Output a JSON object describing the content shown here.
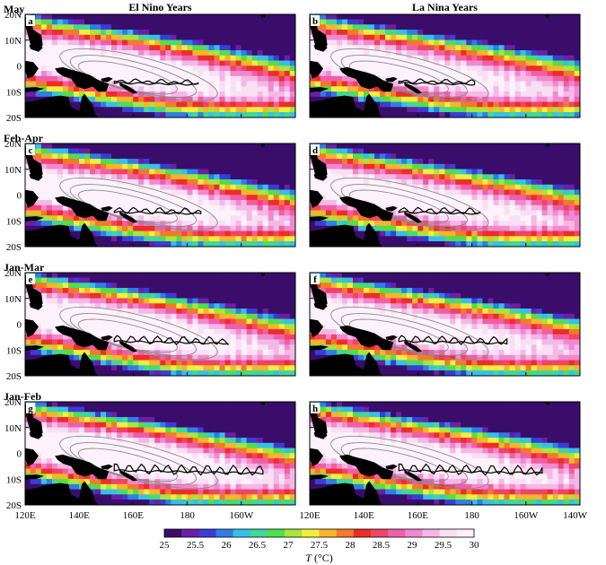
{
  "chart_data": {
    "type": "heatmap",
    "column_titles": [
      "El Nino Years",
      "La Nina Years"
    ],
    "row_titles": [
      "May",
      "Feb-Apr",
      "Jan-Mar",
      "Jan-Feb"
    ],
    "panel_letters": [
      [
        "a",
        "b"
      ],
      [
        "c",
        "d"
      ],
      [
        "e",
        "f"
      ],
      [
        "g",
        "h"
      ]
    ],
    "lat_ticks": [
      "20N",
      "10N",
      "0",
      "10S",
      "20S"
    ],
    "lat_values": [
      20,
      10,
      0,
      -10,
      -20
    ],
    "lon_ticks_left": [
      "120E",
      "140E",
      "160E",
      "180",
      "160W"
    ],
    "lon_ticks_right": [
      "120E",
      "140E",
      "160E",
      "180",
      "160W",
      "140W"
    ],
    "lon_values": [
      120,
      140,
      160,
      180,
      200,
      220
    ],
    "xlim": [
      120,
      220
    ],
    "ylim": [
      -20,
      20
    ],
    "colorbar": {
      "ticks": [
        "25",
        "25.5",
        "26",
        "26.5",
        "27",
        "27.5",
        "28",
        "28.5",
        "29",
        "29.5",
        "30"
      ],
      "values": [
        25,
        25.5,
        26,
        26.5,
        27,
        27.5,
        28,
        28.5,
        29,
        29.5,
        30
      ],
      "colors": [
        "#3a0d6b",
        "#6a1fa6",
        "#3a3cd8",
        "#2f7ee6",
        "#35c0e8",
        "#3fd79a",
        "#4ee04a",
        "#a8e63a",
        "#f2ef3a",
        "#f6b52a",
        "#f4792a",
        "#ee2c2a",
        "#f04466",
        "#ee5fa8",
        "#f089d0",
        "#f4b8e6",
        "#f9dff4",
        "#fdf2fb"
      ],
      "label_italic": "T",
      "label_rest": " (°C)"
    },
    "warm_pool_max_temperature": 30,
    "land_color": "#000000"
  }
}
